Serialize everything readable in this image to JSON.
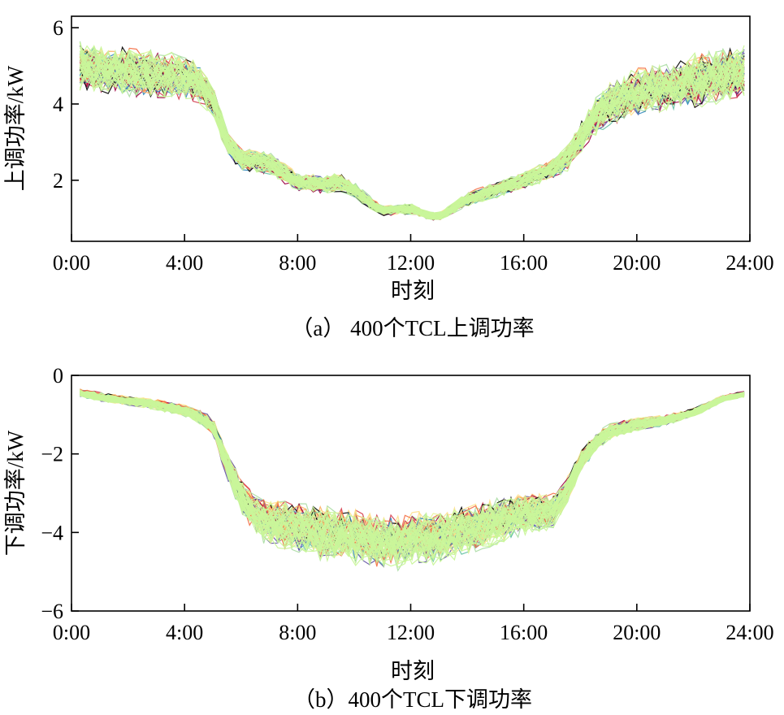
{
  "chart_data": [
    {
      "type": "line",
      "caption": "（a） 400个TCL上调功率",
      "xlabel": "时刻",
      "ylabel": "上调功率/kW",
      "xlim": [
        0,
        24
      ],
      "ylim": [
        0.4,
        6.3
      ],
      "xticks": [
        0,
        4,
        8,
        12,
        16,
        20,
        24
      ],
      "xtick_labels": [
        "0:00",
        "4:00",
        "8:00",
        "12:00",
        "16:00",
        "20:00",
        "24:00"
      ],
      "yticks": [
        2,
        4,
        6
      ],
      "ytick_labels": [
        "2",
        "4",
        "6"
      ],
      "series_count": 400,
      "series_note": "400 TCL curves, colors span a spectral colormap",
      "x": [
        0,
        1,
        2,
        3,
        4,
        4.5,
        5,
        5.5,
        6,
        7,
        8,
        9,
        9.5,
        10,
        10.5,
        11,
        12,
        12.5,
        13,
        14,
        15,
        16,
        17,
        17.5,
        18,
        18.5,
        19,
        20,
        21,
        22,
        23,
        24
      ],
      "mean": [
        5.0,
        4.9,
        4.85,
        4.8,
        4.7,
        4.55,
        4.1,
        3.0,
        2.55,
        2.45,
        1.95,
        1.9,
        1.95,
        1.75,
        1.45,
        1.2,
        1.25,
        1.1,
        1.05,
        1.5,
        1.75,
        2.0,
        2.3,
        2.55,
        3.1,
        3.65,
        4.0,
        4.3,
        4.45,
        4.6,
        4.75,
        4.9
      ],
      "spread": [
        0.6,
        0.55,
        0.55,
        0.55,
        0.5,
        0.45,
        0.35,
        0.25,
        0.25,
        0.25,
        0.2,
        0.2,
        0.2,
        0.18,
        0.15,
        0.12,
        0.12,
        0.1,
        0.1,
        0.15,
        0.18,
        0.2,
        0.22,
        0.3,
        0.35,
        0.45,
        0.5,
        0.55,
        0.55,
        0.6,
        0.6,
        0.6
      ],
      "colors": [
        "#9e0142",
        "#d53e4f",
        "#f46d43",
        "#fdae61",
        "#fee08b",
        "#e6f598",
        "#abdda4",
        "#66c2a5",
        "#3288bd",
        "#5e4fa2",
        "#000000"
      ],
      "top_color": "#c9f59a"
    },
    {
      "type": "line",
      "caption": "（b）400个TCL下调功率",
      "xlabel": "时刻",
      "ylabel": "下调功率/kW",
      "xlim": [
        0,
        24
      ],
      "ylim": [
        -6,
        0
      ],
      "xticks": [
        0,
        4,
        8,
        12,
        16,
        20,
        24
      ],
      "xtick_labels": [
        "0:00",
        "4:00",
        "8:00",
        "12:00",
        "16:00",
        "20:00",
        "24:00"
      ],
      "yticks": [
        0,
        -2,
        -4,
        -6
      ],
      "ytick_labels": [
        "0",
        "−2",
        "−4",
        "−6"
      ],
      "series_count": 400,
      "series_note": "400 TCL curves, colors span a spectral colormap",
      "x": [
        0,
        1,
        2,
        3,
        4,
        4.5,
        5,
        5.5,
        6,
        6.5,
        7,
        8,
        9,
        10,
        11,
        12,
        13,
        14,
        15,
        16,
        17,
        17.5,
        18,
        18.5,
        19,
        20,
        21,
        22,
        23,
        24
      ],
      "mean": [
        -0.4,
        -0.55,
        -0.65,
        -0.75,
        -0.9,
        -1.05,
        -1.3,
        -2.3,
        -3.1,
        -3.6,
        -3.75,
        -3.9,
        -4.05,
        -4.15,
        -4.3,
        -4.2,
        -4.15,
        -3.95,
        -3.75,
        -3.55,
        -3.5,
        -3.0,
        -2.2,
        -1.75,
        -1.45,
        -1.25,
        -1.15,
        -0.95,
        -0.6,
        -0.45
      ],
      "spread": [
        0.08,
        0.1,
        0.1,
        0.12,
        0.12,
        0.15,
        0.2,
        0.3,
        0.4,
        0.45,
        0.5,
        0.55,
        0.6,
        0.6,
        0.6,
        0.6,
        0.6,
        0.55,
        0.5,
        0.45,
        0.4,
        0.3,
        0.25,
        0.2,
        0.18,
        0.15,
        0.12,
        0.1,
        0.08,
        0.06
      ],
      "colors": [
        "#9e0142",
        "#d53e4f",
        "#f46d43",
        "#fdae61",
        "#fee08b",
        "#e6f598",
        "#abdda4",
        "#66c2a5",
        "#3288bd",
        "#5e4fa2",
        "#000000"
      ],
      "top_color": "#c9f59a"
    }
  ]
}
